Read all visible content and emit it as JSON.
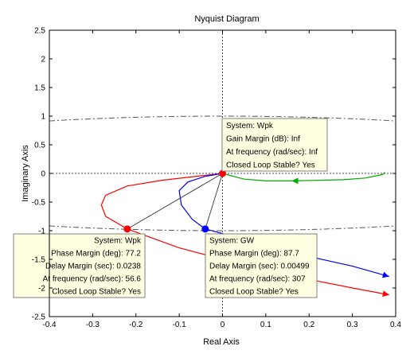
{
  "chart_data": {
    "type": "line",
    "title": "Nyquist Diagram",
    "xlabel": "Real Axis",
    "ylabel": "Imaginary Axis",
    "xlim": [
      -0.4,
      0.4
    ],
    "ylim": [
      -2.5,
      2.5
    ],
    "xticks": [
      "-0.4",
      "-0.3",
      "-0.2",
      "-0.1",
      "0",
      "0.1",
      "0.2",
      "0.3",
      "0.4"
    ],
    "yticks": [
      "2.5",
      "2",
      "1.5",
      "1",
      "0.5",
      "0",
      "-0.5",
      "-1",
      "-1.5",
      "-2",
      "-2.5"
    ],
    "grid": false,
    "series": [
      {
        "name": "Wpk",
        "color": "#ff0000",
        "points": [
          [
            0,
            0
          ],
          [
            -0.06,
            -0.05
          ],
          [
            -0.14,
            -0.12
          ],
          [
            -0.22,
            -0.22
          ],
          [
            -0.27,
            -0.38
          ],
          [
            -0.28,
            -0.55
          ],
          [
            -0.27,
            -0.75
          ],
          [
            -0.22,
            -0.97
          ],
          [
            -0.1,
            -1.3
          ],
          [
            0.05,
            -1.6
          ],
          [
            0.2,
            -1.85
          ],
          [
            0.3,
            -2.0
          ],
          [
            0.385,
            -2.12
          ]
        ]
      },
      {
        "name": "GW",
        "color": "#0000ff",
        "points": [
          [
            0,
            0
          ],
          [
            -0.04,
            -0.05
          ],
          [
            -0.08,
            -0.15
          ],
          [
            -0.1,
            -0.3
          ],
          [
            -0.095,
            -0.55
          ],
          [
            -0.07,
            -0.8
          ],
          [
            -0.04,
            -0.97
          ],
          [
            0.05,
            -1.15
          ],
          [
            0.2,
            -1.45
          ],
          [
            0.3,
            -1.62
          ],
          [
            0.385,
            -1.8
          ]
        ]
      },
      {
        "name": "",
        "color": "#00aa00",
        "points": [
          [
            0,
            0
          ],
          [
            0.05,
            -0.1
          ],
          [
            0.1,
            -0.13
          ],
          [
            0.16,
            -0.13
          ],
          [
            0.22,
            -0.12
          ],
          [
            0.28,
            -0.11
          ],
          [
            0.33,
            -0.08
          ],
          [
            0.37,
            -0.02
          ],
          [
            0.375,
            0.02
          ]
        ]
      }
    ],
    "markers": [
      {
        "x": 0,
        "y": 0,
        "color": "#ff0000"
      },
      {
        "x": -0.22,
        "y": -0.97,
        "color": "#ff0000"
      },
      {
        "x": -0.04,
        "y": -0.97,
        "color": "#0000ff"
      }
    ],
    "annotations": [
      {
        "lines": [
          "System: Wpk",
          "Gain Margin (dB): Inf",
          "At frequency (rad/sec): Inf",
          "Closed Loop Stable? Yes"
        ],
        "align": "left",
        "anchor": [
          0,
          0
        ]
      },
      {
        "lines": [
          "System: Wpk",
          "Phase Margin (deg): 77.2",
          "Delay Margin (sec): 0.0238",
          "At frequency (rad/sec): 56.6",
          "Closed Loop Stable? Yes"
        ],
        "align": "right",
        "anchor": [
          -0.22,
          -0.97
        ]
      },
      {
        "lines": [
          "System: GW",
          "Phase Margin (deg): 87.7",
          "Delay Margin (sec): 0.00499",
          "At frequency (rad/sec): 307",
          "Closed Loop Stable? Yes"
        ],
        "align": "left",
        "anchor": [
          -0.04,
          -0.97
        ]
      }
    ]
  }
}
